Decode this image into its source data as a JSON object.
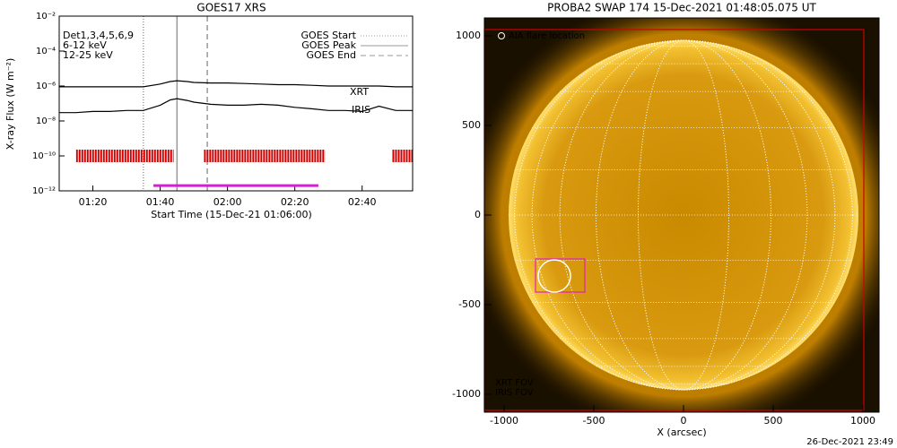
{
  "chart_data": [
    {
      "type": "line",
      "title": "GOES17 XRS",
      "xlabel": "Start Time (15-Dec-21 01:06:00)",
      "ylabel": "X-ray Flux (W m⁻²)",
      "x": [
        70,
        75,
        80,
        85,
        90,
        95,
        100,
        103,
        105,
        108,
        110,
        115,
        120,
        125,
        130,
        135,
        140,
        145,
        150,
        155,
        160,
        165,
        170,
        175
      ],
      "xlim": [
        70,
        175
      ],
      "xticks": [
        {
          "value": 80,
          "label": "01:20"
        },
        {
          "value": 100,
          "label": "01:40"
        },
        {
          "value": 120,
          "label": "02:00"
        },
        {
          "value": 140,
          "label": "02:20"
        },
        {
          "value": 160,
          "label": "02:40"
        }
      ],
      "ylim": [
        1e-12,
        0.01
      ],
      "log": true,
      "yticks": [
        {
          "value": 1e-12,
          "label": "10⁻¹²"
        },
        {
          "value": 1e-10,
          "label": "10⁻¹⁰"
        },
        {
          "value": 1e-08,
          "label": "10⁻⁸"
        },
        {
          "value": 1e-06,
          "label": "10⁻⁶"
        },
        {
          "value": 0.0001,
          "label": "10⁻⁴"
        },
        {
          "value": 0.01,
          "label": "10⁻²"
        }
      ],
      "series": [
        {
          "color": "#000000",
          "values": [
            9e-07,
            9e-07,
            9e-07,
            9e-07,
            9e-07,
            9e-07,
            1.3e-06,
            1.8e-06,
            2e-06,
            1.8e-06,
            1.6e-06,
            1.5e-06,
            1.5e-06,
            1.4e-06,
            1.3e-06,
            1.2e-06,
            1.2e-06,
            1.1e-06,
            1e-06,
            1e-06,
            1e-06,
            1e-06,
            9e-07,
            9e-07
          ]
        },
        {
          "color": "#000000",
          "values": [
            3e-08,
            3e-08,
            3.5e-08,
            3.5e-08,
            4e-08,
            4e-08,
            8e-08,
            1.6e-07,
            1.9e-07,
            1.5e-07,
            1.2e-07,
            9e-08,
            8e-08,
            8e-08,
            9e-08,
            8e-08,
            6e-08,
            5e-08,
            4e-08,
            4e-08,
            3.5e-08,
            7e-08,
            4e-08,
            4e-08
          ]
        }
      ],
      "annotations": [
        {
          "text": "Det1,3,4,5,6,9",
          "color": "#000000"
        },
        {
          "text": "6-12 keV",
          "color": "#d020d0"
        },
        {
          "text": "12-25 keV",
          "color": "#20d020"
        }
      ],
      "events": [
        {
          "name": "GOES Start",
          "value": 95,
          "style": "dotted"
        },
        {
          "name": "GOES Peak",
          "value": 105,
          "style": "solid"
        },
        {
          "name": "GOES End",
          "value": 114,
          "style": "dashed"
        }
      ],
      "coverage": [
        {
          "label": "XRT",
          "color": "#d00000",
          "level": 1e-10,
          "ranges": [
            [
              75,
              104
            ],
            [
              113,
              149
            ],
            [
              169,
              175
            ]
          ]
        },
        {
          "label": "IRIS",
          "color": "#d020d0",
          "level": 2e-12,
          "ranges": [
            [
              98,
              147
            ]
          ]
        }
      ]
    },
    {
      "type": "image",
      "title": "PROBA2 SWAP 174 15-Dec-2021 01:48:05.075 UT",
      "xlabel": "X (arcsec)",
      "xlim": [
        -1110,
        1090
      ],
      "ylim": [
        -1100,
        1100
      ],
      "xticks": [
        -1000,
        -500,
        0,
        500,
        1000
      ],
      "yticks": [
        -1000,
        -500,
        0,
        500,
        1000
      ],
      "solar_radius": 975,
      "flare": {
        "label": "AIA flare location",
        "x": -720,
        "y": -340
      },
      "fovs": [
        {
          "label": "XRT FOV",
          "color": "#d00000",
          "x": [
            -1110,
            1005
          ],
          "y": [
            -1090,
            1035
          ]
        },
        {
          "label": "IRIS FOV",
          "color": "#e020c0",
          "x": [
            -825,
            -550
          ],
          "y": [
            -430,
            -245
          ]
        }
      ]
    }
  ],
  "footer": "26-Dec-2021 23:49"
}
